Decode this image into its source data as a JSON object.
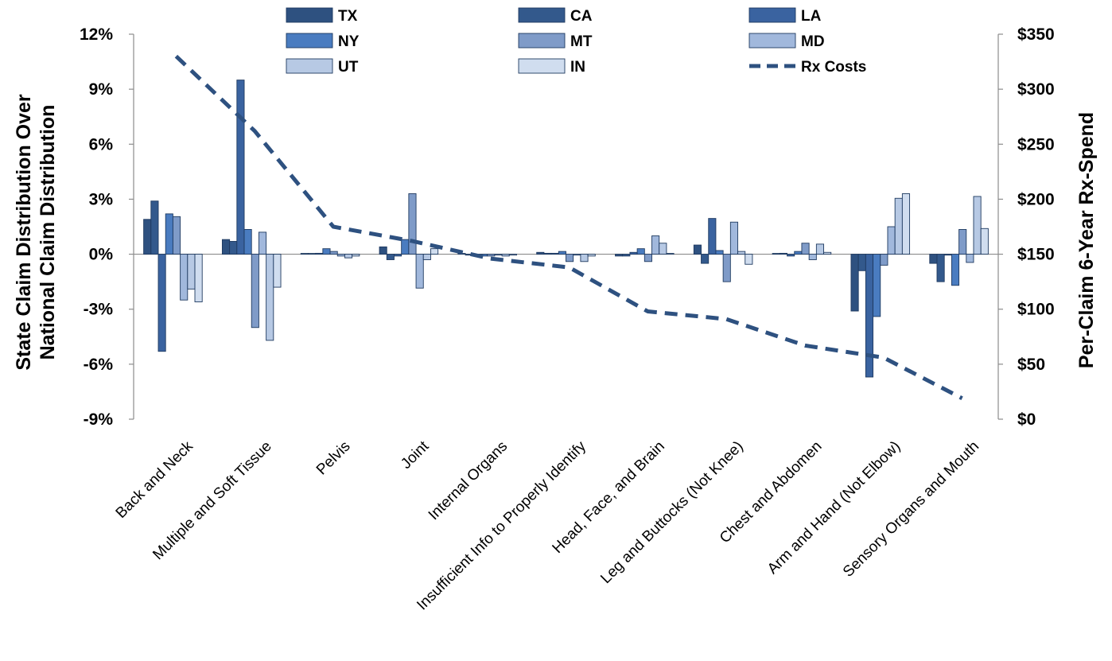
{
  "chart_data": {
    "type": "bar",
    "title": "",
    "categories": [
      "Back and Neck",
      "Multiple and Soft Tissue",
      "Pelvis",
      "Joint",
      "Internal Organs",
      "Insufficient Info to Properly Identify",
      "Head, Face, and Brain",
      "Leg and Buttocks (Not Knee)",
      "Chest and Abdomen",
      "Arm and Hand (Not Elbow)",
      "Sensory Organs and Mouth"
    ],
    "series": [
      {
        "name": "TX",
        "color": "#2e5180",
        "values": [
          1.9,
          0.8,
          0.0,
          0.4,
          0.0,
          0.1,
          -0.1,
          0.5,
          0.0,
          -3.1,
          -0.5
        ]
      },
      {
        "name": "CA",
        "color": "#33598c",
        "values": [
          2.9,
          0.7,
          0.0,
          -0.3,
          -0.05,
          0.05,
          -0.1,
          -0.5,
          0.05,
          -0.9,
          -1.5
        ]
      },
      {
        "name": "LA",
        "color": "#3a63a0",
        "values": [
          -5.3,
          9.5,
          0.05,
          -0.1,
          -0.05,
          0.05,
          0.1,
          1.95,
          -0.1,
          -6.7,
          -0.05
        ]
      },
      {
        "name": "NY",
        "color": "#4a7cc0",
        "values": [
          2.2,
          1.35,
          0.3,
          0.8,
          -0.1,
          0.15,
          0.3,
          0.2,
          0.15,
          -3.4,
          -1.7
        ]
      },
      {
        "name": "MT",
        "color": "#7f9bc8",
        "values": [
          2.05,
          -4.0,
          0.15,
          3.3,
          -0.1,
          -0.4,
          -0.4,
          -1.5,
          0.6,
          -0.6,
          1.35
        ]
      },
      {
        "name": "MD",
        "color": "#a1b8dc",
        "values": [
          -2.5,
          1.2,
          -0.1,
          -1.85,
          -0.05,
          -0.05,
          1.0,
          1.75,
          -0.3,
          1.5,
          -0.45
        ]
      },
      {
        "name": "UT",
        "color": "#b7c9e4",
        "values": [
          -1.9,
          -4.7,
          -0.2,
          -0.3,
          -0.1,
          -0.4,
          0.6,
          0.15,
          0.55,
          3.05,
          3.15
        ]
      },
      {
        "name": "IN",
        "color": "#d0ddef",
        "values": [
          -2.6,
          -1.8,
          -0.1,
          0.3,
          -0.05,
          -0.1,
          0.0,
          -0.55,
          0.1,
          3.3,
          1.4
        ]
      }
    ],
    "line": {
      "name": "Rx Costs",
      "color": "#2e5180",
      "values": [
        330,
        262,
        175,
        162,
        146,
        138,
        98,
        91,
        67,
        56,
        19
      ]
    },
    "y_left": {
      "label": "State Claim Distribution Over National Claim Distribution",
      "min": -9,
      "max": 12,
      "ticks": [
        "-9%",
        "-6%",
        "-3%",
        "0%",
        "3%",
        "6%",
        "9%",
        "12%"
      ]
    },
    "y_right": {
      "label": "Per-Claim 6-Year Rx-Spend",
      "min": 0,
      "max": 350,
      "ticks": [
        "$0",
        "$50",
        "$100",
        "$150",
        "$200",
        "$250",
        "$300",
        "$350"
      ]
    },
    "legend_position": "top",
    "grid": false
  }
}
